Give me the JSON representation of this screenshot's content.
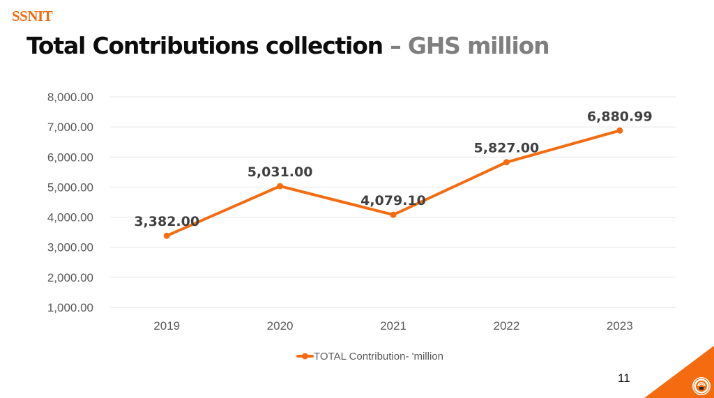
{
  "header": {
    "brand": "SSNIT",
    "title_main": "Total Contributions collection",
    "title_sub": " – GHS million"
  },
  "footer": {
    "page_number": "11",
    "logo_icon": "ssnit-seal-icon"
  },
  "colors": {
    "brand": "#F26A10",
    "series": "#F46B10",
    "gridline": "#e6e6e6",
    "axis_text": "#595959",
    "data_label": "#404040"
  },
  "chart_data": {
    "type": "line",
    "title": "Total Contributions collection – GHS million",
    "xlabel": "",
    "ylabel": "",
    "categories": [
      "2019",
      "2020",
      "2021",
      "2022",
      "2023"
    ],
    "series": [
      {
        "name": "TOTAL Contribution- 'million",
        "values": [
          3382.0,
          5031.0,
          4079.1,
          5827.0,
          6880.99
        ],
        "labels": [
          "3,382.00",
          "5,031.00",
          "4,079.10",
          "5,827.00",
          "6,880.99"
        ]
      }
    ],
    "ylim": [
      1000,
      8000
    ],
    "yticks": [
      1000,
      2000,
      3000,
      4000,
      5000,
      6000,
      7000,
      8000
    ],
    "ytick_labels": [
      "1,000.00",
      "2,000.00",
      "3,000.00",
      "4,000.00",
      "5,000.00",
      "6,000.00",
      "7,000.00",
      "8,000.00"
    ],
    "grid": true,
    "legend": "bottom-center",
    "legend_label": "TOTAL Contribution- 'million"
  }
}
